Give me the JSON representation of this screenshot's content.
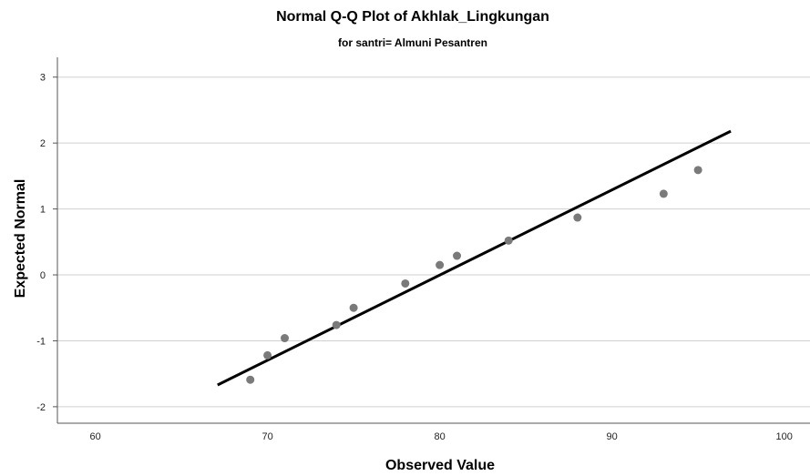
{
  "chart_data": {
    "type": "scatter",
    "title": "Normal Q-Q Plot of Akhlak_Lingkungan",
    "subtitle": "for santri= Almuni Pesantren",
    "xlabel": "Observed Value",
    "ylabel": "Expected Normal",
    "xlim": [
      57.8,
      101.5
    ],
    "ylim": [
      -2.25,
      3.3
    ],
    "xticks": [
      60,
      70,
      80,
      90,
      100
    ],
    "yticks": [
      -2,
      -1,
      0,
      1,
      2,
      3
    ],
    "grid": "horizontal",
    "point_color": "#7a7a7a",
    "line_color": "#000000",
    "points": [
      {
        "x": 69,
        "y": -1.59
      },
      {
        "x": 70,
        "y": -1.22
      },
      {
        "x": 71,
        "y": -0.96
      },
      {
        "x": 74,
        "y": -0.76
      },
      {
        "x": 75,
        "y": -0.5
      },
      {
        "x": 78,
        "y": -0.13
      },
      {
        "x": 80,
        "y": 0.15
      },
      {
        "x": 81,
        "y": 0.29
      },
      {
        "x": 84,
        "y": 0.52
      },
      {
        "x": 88,
        "y": 0.87
      },
      {
        "x": 93,
        "y": 1.23
      },
      {
        "x": 95,
        "y": 1.59
      }
    ],
    "reference_line": {
      "x": [
        67.1,
        96.9
      ],
      "y": [
        -1.67,
        2.18
      ]
    }
  }
}
